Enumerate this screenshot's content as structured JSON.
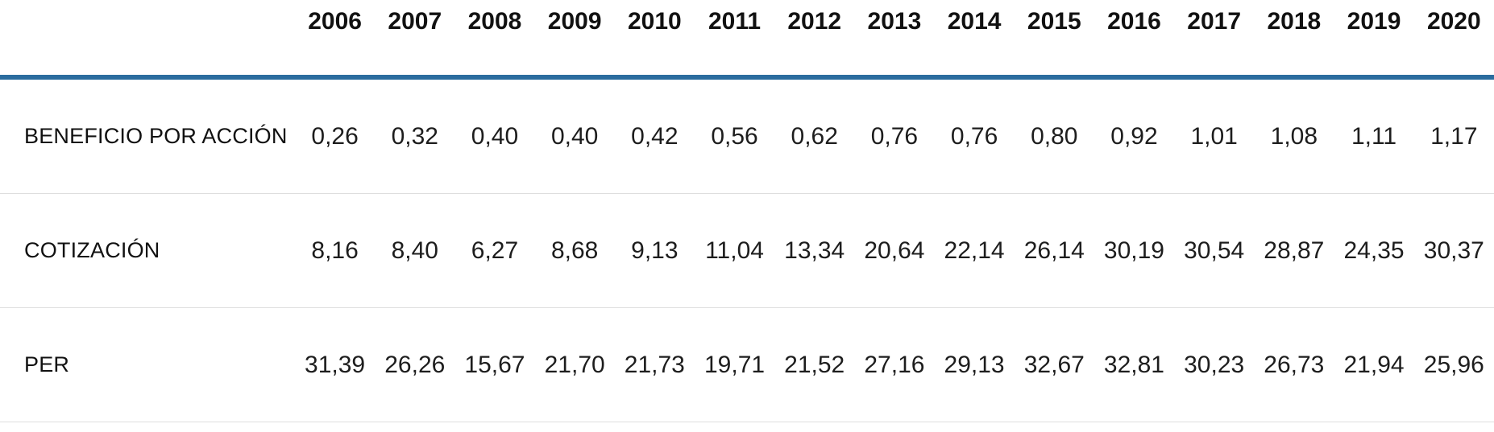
{
  "table": {
    "years": [
      "2006",
      "2007",
      "2008",
      "2009",
      "2010",
      "2011",
      "2012",
      "2013",
      "2014",
      "2015",
      "2016",
      "2017",
      "2018",
      "2019",
      "2020"
    ],
    "rows": [
      {
        "label": "BENEFICIO POR ACCIÓN",
        "values": [
          "0,26",
          "0,32",
          "0,40",
          "0,40",
          "0,42",
          "0,56",
          "0,62",
          "0,76",
          "0,76",
          "0,80",
          "0,92",
          "1,01",
          "1,08",
          "1,11",
          "1,17"
        ]
      },
      {
        "label": "COTIZACIÓN",
        "values": [
          "8,16",
          "8,40",
          "6,27",
          "8,68",
          "9,13",
          "11,04",
          "13,34",
          "20,64",
          "22,14",
          "26,14",
          "30,19",
          "30,54",
          "28,87",
          "24,35",
          "30,37"
        ]
      },
      {
        "label": "PER",
        "values": [
          "31,39",
          "26,26",
          "15,67",
          "21,70",
          "21,73",
          "19,71",
          "21,52",
          "27,16",
          "29,13",
          "32,67",
          "32,81",
          "30,23",
          "26,73",
          "21,94",
          "25,96"
        ]
      }
    ]
  },
  "colors": {
    "accent_blue": "#2b6c9e",
    "divider_gray": "#dedede",
    "text": "#1d1d1d",
    "background": "#ffffff"
  },
  "chart_data": {
    "type": "table",
    "categories": [
      "2006",
      "2007",
      "2008",
      "2009",
      "2010",
      "2011",
      "2012",
      "2013",
      "2014",
      "2015",
      "2016",
      "2017",
      "2018",
      "2019",
      "2020"
    ],
    "series": [
      {
        "name": "BENEFICIO POR ACCIÓN",
        "values": [
          0.26,
          0.32,
          0.4,
          0.4,
          0.42,
          0.56,
          0.62,
          0.76,
          0.76,
          0.8,
          0.92,
          1.01,
          1.08,
          1.11,
          1.17
        ]
      },
      {
        "name": "COTIZACIÓN",
        "values": [
          8.16,
          8.4,
          6.27,
          8.68,
          9.13,
          11.04,
          13.34,
          20.64,
          22.14,
          26.14,
          30.19,
          30.54,
          28.87,
          24.35,
          30.37
        ]
      },
      {
        "name": "PER",
        "values": [
          31.39,
          26.26,
          15.67,
          21.7,
          21.73,
          19.71,
          21.52,
          27.16,
          29.13,
          32.67,
          32.81,
          30.23,
          26.73,
          21.94,
          25.96
        ]
      }
    ],
    "layout_hints": {
      "header_rule_color": "#2b6c9e",
      "row_divider_color": "#dedede",
      "decimal_separator": ",",
      "value_alignment": "center",
      "label_column": "left"
    }
  }
}
